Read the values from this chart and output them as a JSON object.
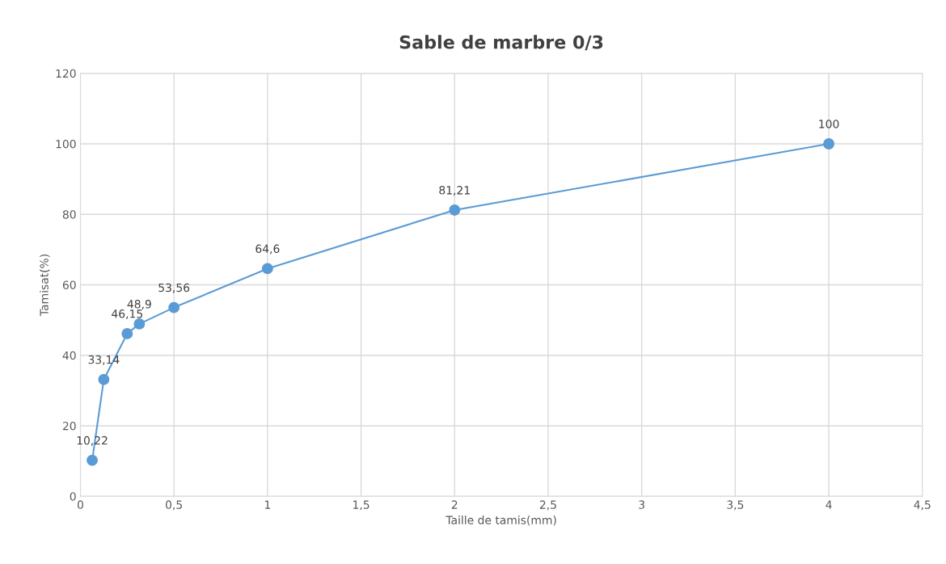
{
  "chart_data": {
    "type": "line",
    "title": "Sable de marbre 0/3",
    "xlabel": "Taille de tamis(mm)",
    "ylabel": "Tamisat(%)",
    "series": [
      {
        "color": "#5b9bd5",
        "x": [
          0.063,
          0.125,
          0.25,
          0.315,
          0.5,
          1,
          2,
          4
        ],
        "values": [
          10.22,
          33.14,
          46.15,
          48.9,
          53.56,
          64.6,
          81.21,
          100
        ],
        "value_labels": [
          "10,22",
          "33,14",
          "46,15",
          "48,9",
          "53,56",
          "64,6",
          "81,21",
          "100"
        ]
      }
    ],
    "xlim": [
      0,
      4.5
    ],
    "xticks": [
      0,
      {
        "value": 0.5,
        "label": "0,5"
      },
      1,
      {
        "value": 1.5,
        "label": "1,5"
      },
      2,
      {
        "value": 2.5,
        "label": "2,5"
      },
      3,
      {
        "value": 3.5,
        "label": "3,5"
      },
      4,
      {
        "value": 4.5,
        "label": "4,5"
      }
    ],
    "ylim": [
      0,
      120
    ],
    "yticks": [
      0,
      20,
      40,
      60,
      80,
      100,
      120
    ],
    "grid": true,
    "marker": "circle",
    "line_style": "solid"
  }
}
